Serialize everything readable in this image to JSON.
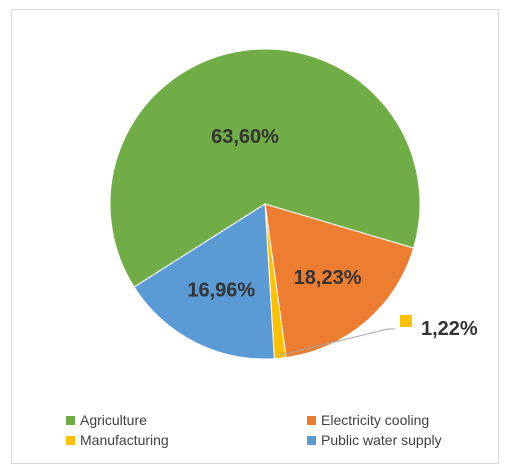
{
  "chart_data": {
    "type": "pie",
    "series": [
      {
        "name": "Agriculture",
        "value": 63.6,
        "label": "63,60%",
        "color": "#70ad47"
      },
      {
        "name": "Electricity cooling",
        "value": 18.23,
        "label": "18,23%",
        "color": "#ed7d31"
      },
      {
        "name": "Manufacturing",
        "value": 1.22,
        "label": "1,22%",
        "color": "#ffc000"
      },
      {
        "name": "Public water supply",
        "value": 16.96,
        "label": "16,96%",
        "color": "#5b9bd5"
      }
    ],
    "legend_position": "bottom"
  }
}
